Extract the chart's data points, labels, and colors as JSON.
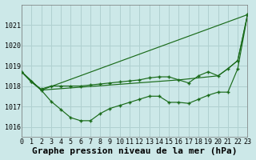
{
  "bg_color": "#cce8e8",
  "grid_color": "#b0d0d0",
  "line_color": "#1a6b1a",
  "marker_color": "#1a6b1a",
  "title": "Graphe pression niveau de la mer (hPa)",
  "xlim": [
    0,
    23
  ],
  "ylim": [
    1015.5,
    1022.0
  ],
  "yticks": [
    1016,
    1017,
    1018,
    1019,
    1020,
    1021
  ],
  "xticks": [
    0,
    1,
    2,
    3,
    4,
    5,
    6,
    7,
    8,
    9,
    10,
    11,
    12,
    13,
    14,
    15,
    16,
    17,
    18,
    19,
    20,
    21,
    22,
    23
  ],
  "line1_x": [
    0,
    1,
    2,
    3,
    4,
    5,
    6,
    7,
    8,
    9,
    10,
    11,
    12,
    13,
    14,
    15,
    16,
    17,
    18,
    19,
    20,
    21,
    22,
    23
  ],
  "line1_y": [
    1018.7,
    1018.2,
    1017.8,
    1017.25,
    1016.85,
    1016.45,
    1016.3,
    1016.3,
    1016.65,
    1016.9,
    1017.05,
    1017.2,
    1017.35,
    1017.5,
    1017.5,
    1017.2,
    1017.2,
    1017.15,
    1017.35,
    1017.55,
    1017.7,
    1017.7,
    1018.85,
    1021.5
  ],
  "line2_x": [
    0,
    1,
    2,
    3,
    4,
    5,
    6,
    7,
    8,
    9,
    10,
    11,
    12,
    13,
    14,
    15,
    16,
    17,
    18,
    19,
    20,
    21,
    22,
    23
  ],
  "line2_y": [
    1018.7,
    1018.2,
    1017.85,
    1018.0,
    1018.0,
    1018.0,
    1018.0,
    1018.05,
    1018.1,
    1018.15,
    1018.2,
    1018.25,
    1018.3,
    1018.4,
    1018.45,
    1018.45,
    1018.3,
    1018.15,
    1018.5,
    1018.7,
    1018.5,
    1018.85,
    1019.25,
    1021.5
  ],
  "line3_x": [
    0,
    2,
    23
  ],
  "line3_y": [
    1018.7,
    1017.8,
    1021.5
  ],
  "line4_x": [
    0,
    2,
    16,
    20,
    21,
    22,
    23
  ],
  "line4_y": [
    1018.7,
    1017.8,
    1018.3,
    1018.5,
    1018.85,
    1019.25,
    1021.5
  ],
  "title_fontsize": 8,
  "tick_fontsize": 6
}
